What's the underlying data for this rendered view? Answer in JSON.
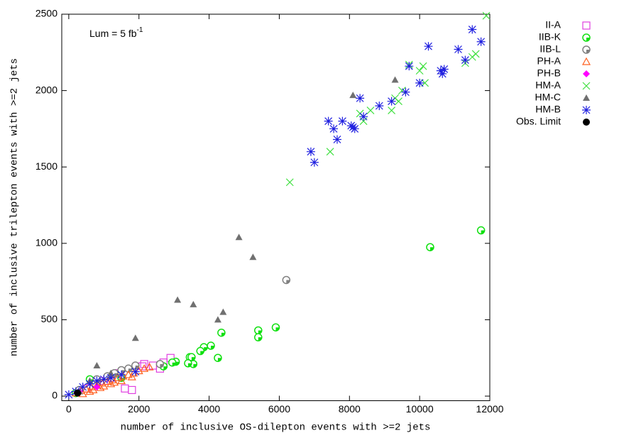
{
  "chart_data": {
    "type": "scatter",
    "x_label": "number of inclusive OS-dilepton events with >=2 jets",
    "y_label": "number of inclusive trilepton events with >=2 jets",
    "annotation": {
      "text": "Lum = 5 fb",
      "superscript": "-1"
    },
    "xlim": [
      -200,
      12000
    ],
    "ylim": [
      -30,
      2500
    ],
    "xticks": [
      0,
      2000,
      4000,
      6000,
      8000,
      10000,
      12000
    ],
    "yticks": [
      0,
      500,
      1000,
      1500,
      2000,
      2500
    ],
    "series": [
      {
        "name": "II-A",
        "color": "#e040e0",
        "marker": "square",
        "x": [
          2900,
          2700,
          2400,
          2150,
          2100,
          1800,
          1600,
          1400,
          1000,
          500,
          2600,
          1200
        ],
        "y": [
          250,
          220,
          200,
          210,
          195,
          40,
          50,
          150,
          100,
          50,
          180,
          120
        ]
      },
      {
        "name": "IIB-K",
        "color": "#10e010",
        "marker": "circle",
        "x": [
          11750,
          10300,
          5900,
          5400,
          5400,
          4350,
          4250,
          4050,
          3850,
          3750,
          3550,
          3450,
          3400,
          3050,
          2950,
          2700,
          3500,
          600,
          1500,
          200
        ],
        "y": [
          1085,
          975,
          450,
          430,
          385,
          415,
          250,
          330,
          320,
          295,
          210,
          255,
          215,
          225,
          220,
          195,
          255,
          110,
          120,
          20
        ]
      },
      {
        "name": "IIB-L",
        "color": "#808080",
        "marker": "circle",
        "x": [
          6200,
          1500,
          1700,
          1900,
          2600,
          1100,
          800,
          300,
          1300
        ],
        "y": [
          760,
          170,
          180,
          200,
          210,
          130,
          110,
          40,
          150
        ]
      },
      {
        "name": "PH-A",
        "color": "#ff6020",
        "marker": "triangle-open",
        "x": [
          200,
          350,
          500,
          650,
          800,
          950,
          1100,
          1250,
          1400,
          1550,
          1700,
          1850,
          2000,
          2150,
          2300,
          600,
          900,
          1200,
          1500,
          1800,
          400,
          700,
          1000,
          1300
        ],
        "y": [
          20,
          35,
          45,
          60,
          70,
          85,
          95,
          105,
          120,
          130,
          140,
          150,
          165,
          180,
          190,
          30,
          55,
          80,
          100,
          125,
          15,
          40,
          65,
          90
        ]
      },
      {
        "name": "PH-B",
        "color": "#ff00ff",
        "marker": "diamond",
        "x": [
          300,
          800
        ],
        "y": [
          30,
          60
        ]
      },
      {
        "name": "HM-A",
        "color": "#40e040",
        "marker": "cross",
        "x": [
          6300,
          7450,
          8300,
          8400,
          9200,
          9300,
          9400,
          9500,
          9700,
          10000,
          10100,
          10150,
          11300,
          11500,
          11600,
          11900,
          8600
        ],
        "y": [
          1400,
          1600,
          1850,
          1800,
          1870,
          1950,
          1930,
          2000,
          2170,
          2130,
          2160,
          2050,
          2180,
          2220,
          2240,
          2490,
          1870
        ]
      },
      {
        "name": "HM-C",
        "color": "#707070",
        "marker": "triangle",
        "x": [
          300,
          800,
          1900,
          3100,
          3550,
          4250,
          4400,
          4850,
          5250,
          8100,
          9300,
          600,
          1200
        ],
        "y": [
          30,
          200,
          380,
          630,
          600,
          500,
          550,
          1040,
          910,
          1970,
          2070,
          100,
          150
        ]
      },
      {
        "name": "HM-B",
        "color": "#2020e0",
        "marker": "star",
        "x": [
          6900,
          7000,
          7400,
          7550,
          7650,
          7800,
          8050,
          8100,
          8150,
          8300,
          8400,
          8850,
          9200,
          9600,
          9700,
          10000,
          10250,
          10600,
          10700,
          10650,
          11100,
          11300,
          11500,
          11750,
          200,
          400,
          600,
          800,
          1000,
          1200,
          1500,
          1900,
          0
        ],
        "y": [
          1600,
          1530,
          1800,
          1750,
          1680,
          1800,
          1770,
          1760,
          1750,
          1950,
          1830,
          1900,
          1930,
          1990,
          2160,
          2050,
          2290,
          2130,
          2140,
          2110,
          2270,
          2200,
          2400,
          2320,
          30,
          60,
          80,
          100,
          110,
          120,
          140,
          160,
          10
        ]
      },
      {
        "name": "Obs. Limit",
        "color": "#000000",
        "marker": "dot",
        "x": [
          250
        ],
        "y": [
          20
        ]
      }
    ]
  }
}
